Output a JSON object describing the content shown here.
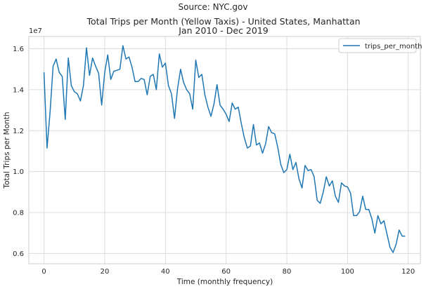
{
  "suptitle": "Source: NYC.gov",
  "chart_data": {
    "type": "line",
    "title_line1": "Total Trips per Month (Yellow Taxis) - United States, Manhattan",
    "title_line2": "Jan 2010 - Dec 2019",
    "xlabel": "Time (monthly frequency)",
    "ylabel": "Total Trips per Month",
    "y_offset_text": "1e7",
    "xlim": [
      -5,
      124
    ],
    "ylim": [
      5500000,
      16600000
    ],
    "x_ticks": [
      0,
      20,
      40,
      60,
      80,
      100,
      120
    ],
    "x_tick_labels": [
      "0",
      "20",
      "40",
      "60",
      "80",
      "100",
      "120"
    ],
    "y_ticks": [
      6000000,
      8000000,
      10000000,
      12000000,
      14000000,
      16000000
    ],
    "y_tick_labels": [
      "0.6",
      "0.8",
      "1.0",
      "1.2",
      "1.4",
      "1.6"
    ],
    "grid": true,
    "legend_position": "top-right",
    "color": "#1f77b4",
    "series": [
      {
        "name": "trips_per_month",
        "x": [
          0,
          1,
          2,
          3,
          4,
          5,
          6,
          7,
          8,
          9,
          10,
          11,
          12,
          13,
          14,
          15,
          16,
          17,
          18,
          19,
          20,
          21,
          22,
          23,
          24,
          25,
          26,
          27,
          28,
          29,
          30,
          31,
          32,
          33,
          34,
          35,
          36,
          37,
          38,
          39,
          40,
          41,
          42,
          43,
          44,
          45,
          46,
          47,
          48,
          49,
          50,
          51,
          52,
          53,
          54,
          55,
          56,
          57,
          58,
          59,
          60,
          61,
          62,
          63,
          64,
          65,
          66,
          67,
          68,
          69,
          70,
          71,
          72,
          73,
          74,
          75,
          76,
          77,
          78,
          79,
          80,
          81,
          82,
          83,
          84,
          85,
          86,
          87,
          88,
          89,
          90,
          91,
          92,
          93,
          94,
          95,
          96,
          97,
          98,
          99,
          100,
          101,
          102,
          103,
          104,
          105,
          106,
          107,
          108,
          109,
          110,
          111,
          112,
          113,
          114,
          115,
          116,
          117,
          118,
          119
        ],
        "values": [
          14850000,
          11150000,
          12900000,
          15150000,
          15500000,
          14850000,
          14650000,
          12550000,
          15550000,
          14200000,
          13900000,
          13800000,
          13450000,
          14200000,
          16050000,
          14700000,
          15550000,
          15150000,
          14800000,
          13250000,
          14850000,
          15700000,
          14500000,
          14900000,
          14950000,
          15000000,
          16150000,
          15500000,
          15600000,
          15100000,
          14400000,
          14400000,
          14550000,
          14500000,
          13750000,
          14650000,
          14750000,
          14000000,
          15750000,
          15100000,
          15300000,
          14200000,
          13800000,
          12600000,
          14050000,
          15000000,
          14350000,
          14000000,
          13800000,
          13050000,
          15450000,
          14600000,
          14750000,
          13750000,
          13150000,
          12700000,
          13300000,
          14250000,
          13250000,
          13050000,
          12800000,
          12450000,
          13350000,
          13050000,
          13150000,
          12350000,
          11650000,
          11150000,
          11250000,
          12300000,
          11300000,
          11400000,
          10900000,
          11350000,
          12200000,
          11900000,
          11850000,
          11200000,
          10350000,
          9950000,
          10100000,
          10850000,
          10100000,
          10450000,
          9650000,
          9200000,
          10300000,
          10050000,
          10100000,
          9750000,
          8600000,
          8450000,
          9000000,
          9750000,
          9300000,
          9550000,
          8800000,
          8500000,
          9450000,
          9300000,
          9250000,
          8950000,
          7850000,
          7850000,
          8050000,
          8800000,
          8150000,
          8150000,
          7700000,
          7000000,
          7850000,
          7450000,
          7600000,
          6950000,
          6300000,
          6050000,
          6450000,
          7150000,
          6850000,
          6850000
        ]
      }
    ]
  }
}
